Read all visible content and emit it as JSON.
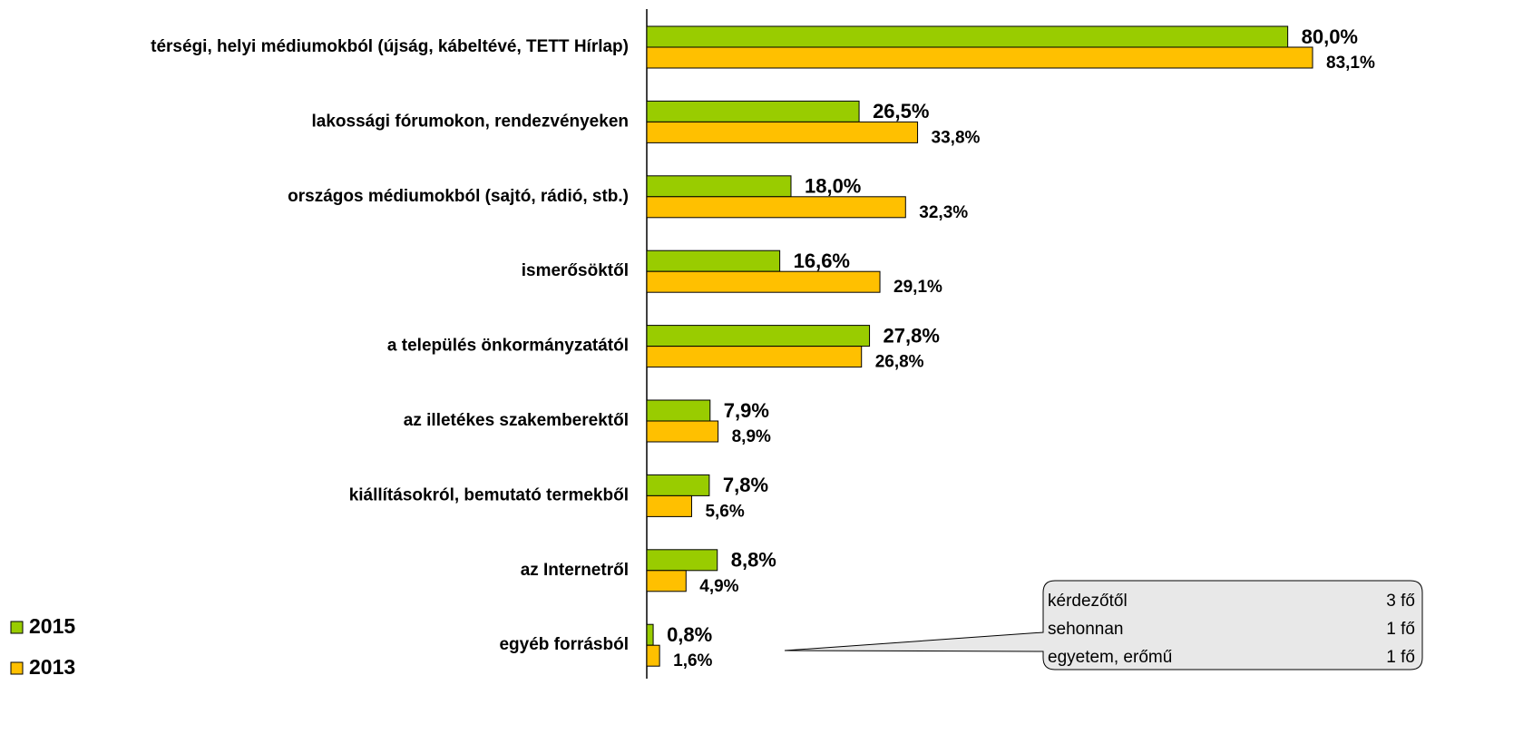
{
  "chart_data": {
    "type": "bar",
    "orientation": "horizontal",
    "categories": [
      "térségi, helyi médiumokból (újság, kábeltévé, TETT Hírlap)",
      "lakossági fórumokon, rendezvényeken",
      "országos médiumokból (sajtó, rádió, stb.)",
      "ismerősöktől",
      "a település önkormányzatától",
      "az illetékes szakemberektől",
      "kiállításokról, bemutató termekből",
      "az Internetről",
      "egyéb forrásból"
    ],
    "series": [
      {
        "name": "2015",
        "color": "#99cc00",
        "values": [
          80.0,
          26.5,
          18.0,
          16.6,
          27.8,
          7.9,
          7.8,
          8.8,
          0.8
        ],
        "value_labels": [
          "80,0%",
          "26,5%",
          "18,0%",
          "16,6%",
          "27,8%",
          "7,9%",
          "7,8%",
          "8,8%",
          "0,8%"
        ]
      },
      {
        "name": "2013",
        "color": "#ffc000",
        "values": [
          83.1,
          33.8,
          32.3,
          29.1,
          26.8,
          8.9,
          5.6,
          4.9,
          1.6
        ],
        "value_labels": [
          "83,1%",
          "33,8%",
          "32,3%",
          "29,1%",
          "26,8%",
          "8,9%",
          "5,6%",
          "4,9%",
          "1,6%"
        ]
      }
    ],
    "legend": "bottom-left",
    "annotation": {
      "rows": [
        [
          "kérdezőtől",
          "3 fő"
        ],
        [
          "sehonnan",
          "1 fő"
        ],
        [
          "egyetem, erőmű",
          "1 fő"
        ]
      ]
    }
  }
}
